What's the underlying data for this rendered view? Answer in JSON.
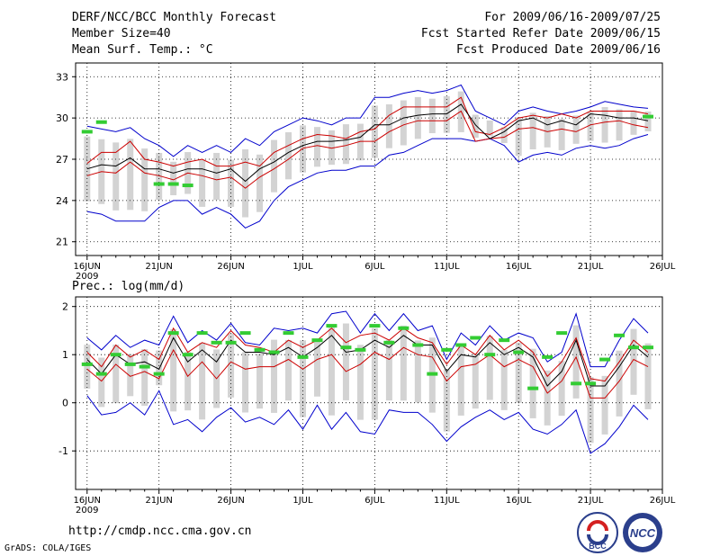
{
  "header": {
    "title": "DERF/NCC/BCC Monthly Forecast",
    "member_size": "Member Size=40",
    "variable": "Mean Surf. Temp.: °C",
    "period": "For 2009/06/16-2009/07/25",
    "refer_date": "Fcst Started Refer Date 2009/06/15",
    "produced_date": "Fcst Produced Date 2009/06/16"
  },
  "footer": {
    "url": "http://cmdp.ncc.cma.gov.cn",
    "grads_credit": "GrADS: COLA/IGES",
    "logo_bcc": "BCC",
    "logo_ncc": "NCC"
  },
  "chart_data": [
    {
      "type": "line",
      "title": "Mean Surf. Temp.: °C",
      "x": [
        1,
        2,
        3,
        4,
        5,
        6,
        7,
        8,
        9,
        10,
        11,
        12,
        13,
        14,
        15,
        16,
        17,
        18,
        19,
        20,
        21,
        22,
        23,
        24,
        25,
        26,
        27,
        28,
        29,
        30,
        31,
        32,
        33,
        34,
        35,
        36,
        37,
        38,
        39,
        40
      ],
      "xtick_labels": [
        "16JUN",
        "21JUN",
        "26JUN",
        "1JUL",
        "6JUL",
        "11JUL",
        "16JUL",
        "21JUL",
        "26JUL"
      ],
      "xtick_positions": [
        1,
        6,
        11,
        16,
        21,
        26,
        31,
        36,
        41
      ],
      "year_label": "2009",
      "ylim": [
        20,
        34
      ],
      "yticks": [
        21,
        24,
        27,
        30,
        33
      ],
      "series": [
        {
          "name": "ensemble max",
          "color": "#0000cc",
          "values": [
            23.2,
            23.0,
            22.5,
            22.5,
            22.5,
            23.5,
            24.0,
            24.0,
            23.0,
            23.5,
            23.0,
            22.0,
            22.5,
            24.0,
            25.0,
            25.5,
            26.0,
            26.2,
            26.2,
            26.5,
            26.5,
            27.3,
            27.5,
            28.0,
            28.5,
            28.5,
            28.5,
            28.3,
            28.5,
            28.0,
            26.8,
            27.3,
            27.5,
            27.3,
            27.8,
            28.0,
            27.8,
            28.0,
            28.5,
            28.8
          ]
        },
        {
          "name": "ensemble min",
          "color": "#0000cc",
          "values": [
            29.4,
            29.2,
            29.0,
            29.3,
            28.5,
            28.0,
            27.2,
            28.0,
            27.5,
            28.0,
            27.5,
            28.5,
            28.0,
            29.0,
            29.5,
            30.0,
            29.8,
            29.5,
            30.0,
            30.0,
            31.5,
            31.5,
            31.8,
            32.0,
            31.8,
            32.0,
            32.4,
            30.5,
            30.0,
            29.5,
            30.5,
            30.8,
            30.5,
            30.3,
            30.5,
            30.8,
            31.2,
            31.0,
            30.8,
            30.7
          ]
        },
        {
          "name": "upper bound",
          "color": "#cc0000",
          "values": [
            26.7,
            27.5,
            27.5,
            28.3,
            27.0,
            26.8,
            26.5,
            26.8,
            27.0,
            26.5,
            26.5,
            26.8,
            26.5,
            27.5,
            28.0,
            28.5,
            28.8,
            28.7,
            28.5,
            29.0,
            29.2,
            30.2,
            30.8,
            30.8,
            30.8,
            30.8,
            31.5,
            29.0,
            28.8,
            29.3,
            30.0,
            30.2,
            30.0,
            30.3,
            30.0,
            30.5,
            30.5,
            30.5,
            30.5,
            30.3
          ]
        },
        {
          "name": "lower bound",
          "color": "#cc0000",
          "values": [
            25.8,
            26.1,
            26.0,
            26.8,
            26.0,
            25.8,
            25.5,
            26.0,
            25.8,
            25.5,
            25.7,
            24.9,
            25.7,
            26.3,
            27.0,
            27.8,
            28.0,
            27.8,
            28.0,
            28.3,
            28.3,
            29.0,
            29.5,
            29.8,
            29.8,
            29.8,
            30.5,
            28.3,
            28.5,
            28.6,
            29.2,
            29.3,
            29.0,
            29.2,
            29.0,
            29.5,
            29.7,
            29.8,
            29.5,
            29.3
          ]
        },
        {
          "name": "ensemble mean",
          "color": "#000000",
          "values": [
            26.3,
            26.6,
            26.5,
            27.1,
            26.3,
            26.3,
            26.0,
            26.3,
            26.3,
            26.0,
            26.3,
            25.4,
            26.3,
            26.8,
            27.5,
            28.0,
            28.3,
            28.3,
            28.4,
            28.6,
            29.5,
            29.5,
            30.0,
            30.2,
            30.3,
            30.3,
            31.0,
            29.5,
            28.5,
            29.0,
            29.8,
            30.0,
            29.5,
            29.8,
            29.5,
            30.3,
            30.2,
            30.0,
            30.0,
            29.8
          ]
        },
        {
          "name": "observed",
          "color": "#33cc33",
          "values": [
            29.0,
            29.7,
            null,
            null,
            null,
            25.2,
            25.2,
            25.1,
            null,
            null,
            null,
            null,
            null,
            null,
            null,
            null,
            null,
            null,
            null,
            null,
            null,
            null,
            null,
            null,
            null,
            null,
            null,
            null,
            null,
            null,
            null,
            null,
            null,
            null,
            null,
            null,
            null,
            null,
            null,
            30.1
          ]
        }
      ]
    },
    {
      "type": "line",
      "title": "Prec.: log(mm/d)",
      "x": [
        1,
        2,
        3,
        4,
        5,
        6,
        7,
        8,
        9,
        10,
        11,
        12,
        13,
        14,
        15,
        16,
        17,
        18,
        19,
        20,
        21,
        22,
        23,
        24,
        25,
        26,
        27,
        28,
        29,
        30,
        31,
        32,
        33,
        34,
        35,
        36,
        37,
        38,
        39,
        40
      ],
      "xtick_labels": [
        "16JUN",
        "21JUN",
        "26JUN",
        "1JUL",
        "6JUL",
        "11JUL",
        "16JUL",
        "21JUL",
        "26JUL"
      ],
      "xtick_positions": [
        1,
        6,
        11,
        16,
        21,
        26,
        31,
        36,
        41
      ],
      "year_label": "2009",
      "ylim": [
        -1.8,
        2.2
      ],
      "yticks": [
        -1,
        0,
        1,
        2
      ],
      "series": [
        {
          "name": "ensemble max",
          "color": "#0000cc",
          "values": [
            1.35,
            1.1,
            1.4,
            1.15,
            1.3,
            1.2,
            1.8,
            1.25,
            1.5,
            1.3,
            1.65,
            1.25,
            1.2,
            1.55,
            1.5,
            1.55,
            1.45,
            1.85,
            1.9,
            1.45,
            1.85,
            1.5,
            1.85,
            1.5,
            1.6,
            0.9,
            1.45,
            1.2,
            1.6,
            1.3,
            1.45,
            1.35,
            0.85,
            1.05,
            1.85,
            0.75,
            0.75,
            1.3,
            1.75,
            1.45
          ]
        },
        {
          "name": "ensemble min",
          "color": "#0000cc",
          "values": [
            0.15,
            -0.25,
            -0.2,
            0.0,
            -0.25,
            0.25,
            -0.45,
            -0.35,
            -0.6,
            -0.3,
            -0.1,
            -0.4,
            -0.3,
            -0.45,
            -0.15,
            -0.55,
            -0.05,
            -0.55,
            -0.2,
            -0.6,
            -0.65,
            -0.15,
            -0.2,
            -0.2,
            -0.45,
            -0.8,
            -0.5,
            -0.3,
            -0.15,
            -0.35,
            -0.2,
            -0.55,
            -0.65,
            -0.45,
            -0.15,
            -1.05,
            -0.85,
            -0.5,
            -0.05,
            -0.35
          ]
        },
        {
          "name": "upper bound",
          "color": "#cc0000",
          "values": [
            1.05,
            0.75,
            1.2,
            0.95,
            1.1,
            0.9,
            1.55,
            1.05,
            1.25,
            1.15,
            1.5,
            1.2,
            1.15,
            1.05,
            1.3,
            1.15,
            1.3,
            1.55,
            1.25,
            1.4,
            1.45,
            1.3,
            1.55,
            1.35,
            1.25,
            0.8,
            1.2,
            1.0,
            1.4,
            1.1,
            1.3,
            1.05,
            0.55,
            0.85,
            1.35,
            0.5,
            0.45,
            0.85,
            1.3,
            1.05
          ]
        },
        {
          "name": "lower bound",
          "color": "#cc0000",
          "values": [
            0.7,
            0.45,
            0.8,
            0.55,
            0.65,
            0.5,
            1.1,
            0.55,
            0.85,
            0.5,
            0.85,
            0.7,
            0.75,
            0.75,
            0.9,
            0.7,
            0.9,
            1.0,
            0.65,
            0.8,
            1.05,
            0.9,
            1.15,
            1.0,
            0.95,
            0.45,
            0.75,
            0.8,
            1.0,
            0.75,
            0.9,
            0.75,
            0.2,
            0.45,
            0.95,
            0.1,
            0.1,
            0.45,
            0.9,
            0.75
          ]
        },
        {
          "name": "ensemble mean",
          "color": "#000000",
          "values": [
            0.9,
            0.6,
            1.0,
            0.8,
            0.85,
            0.7,
            1.35,
            0.85,
            1.1,
            0.85,
            1.3,
            1.05,
            1.05,
            1.0,
            1.15,
            0.95,
            1.15,
            1.4,
            1.05,
            1.1,
            1.3,
            1.15,
            1.4,
            1.2,
            1.2,
            0.65,
            1.0,
            0.95,
            1.25,
            1.0,
            1.15,
            0.95,
            0.35,
            0.65,
            1.3,
            0.35,
            0.35,
            0.75,
            1.2,
            0.95
          ]
        },
        {
          "name": "observed",
          "color": "#33cc33",
          "values": [
            0.8,
            0.6,
            1.0,
            0.8,
            0.75,
            0.6,
            1.45,
            1.0,
            1.45,
            1.25,
            1.25,
            1.45,
            1.1,
            1.05,
            1.45,
            0.95,
            1.3,
            1.6,
            1.15,
            1.1,
            1.6,
            1.25,
            1.55,
            1.2,
            0.6,
            1.1,
            1.2,
            1.35,
            1.0,
            1.3,
            1.05,
            0.3,
            0.95,
            1.45,
            0.4,
            0.4,
            0.9,
            1.4,
            1.15,
            1.15
          ]
        }
      ]
    }
  ]
}
